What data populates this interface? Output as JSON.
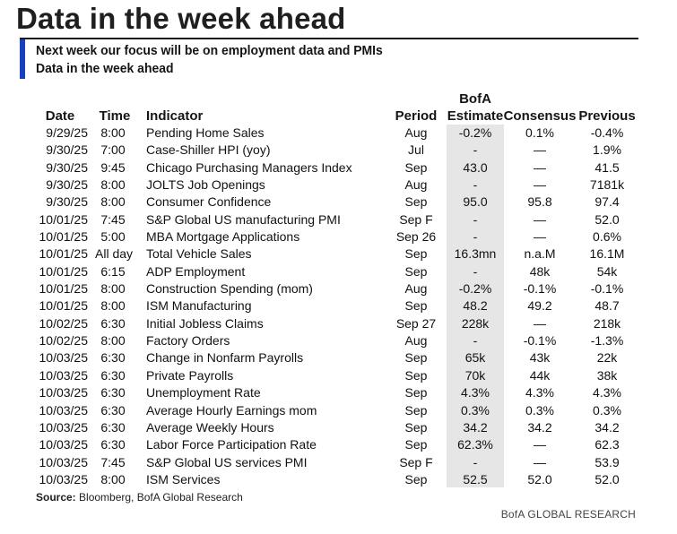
{
  "title": "Data in the week ahead",
  "subtitle1": "Next week our focus will be on employment data and PMIs",
  "subtitle2": "Data in the week ahead",
  "headers": {
    "date": "Date",
    "time": "Time",
    "indicator": "Indicator",
    "period": "Period",
    "bofa_line1": "BofA",
    "bofa_line2": "Estimate",
    "consensus": "Consensus",
    "previous": "Previous"
  },
  "colors": {
    "accent_bar": "#1a3fbf",
    "shade": "#e6e6e6"
  },
  "rows": [
    {
      "date": "9/29/25",
      "time": "8:00",
      "indicator": "Pending Home Sales",
      "period": "Aug",
      "bofa": "-0.2%",
      "consensus": "0.1%",
      "previous": "-0.4%"
    },
    {
      "date": "9/30/25",
      "time": "7:00",
      "indicator": "Case-Shiller HPI (yoy)",
      "period": "Jul",
      "bofa": "-",
      "consensus": "—",
      "previous": "1.9%"
    },
    {
      "date": "9/30/25",
      "time": "9:45",
      "indicator": "Chicago Purchasing Managers Index",
      "period": "Sep",
      "bofa": "43.0",
      "consensus": "—",
      "previous": "41.5"
    },
    {
      "date": "9/30/25",
      "time": "8:00",
      "indicator": "JOLTS Job Openings",
      "period": "Aug",
      "bofa": "-",
      "consensus": "—",
      "previous": "7181k"
    },
    {
      "date": "9/30/25",
      "time": "8:00",
      "indicator": "Consumer Confidence",
      "period": "Sep",
      "bofa": "95.0",
      "consensus": "95.8",
      "previous": "97.4"
    },
    {
      "date": "10/01/25",
      "time": "7:45",
      "indicator": "S&P Global US manufacturing PMI",
      "period": "Sep F",
      "bofa": "-",
      "consensus": "—",
      "previous": "52.0"
    },
    {
      "date": "10/01/25",
      "time": "5:00",
      "indicator": "MBA Mortgage Applications",
      "period": "Sep 26",
      "bofa": "-",
      "consensus": "—",
      "previous": "0.6%"
    },
    {
      "date": "10/01/25",
      "time": "All day",
      "indicator": "Total Vehicle Sales",
      "period": "Sep",
      "bofa": "16.3mn",
      "consensus": "n.a.M",
      "previous": "16.1M"
    },
    {
      "date": "10/01/25",
      "time": "6:15",
      "indicator": "ADP Employment",
      "period": "Sep",
      "bofa": "-",
      "consensus": "48k",
      "previous": "54k"
    },
    {
      "date": "10/01/25",
      "time": "8:00",
      "indicator": "Construction Spending (mom)",
      "period": "Aug",
      "bofa": "-0.2%",
      "consensus": "-0.1%",
      "previous": "-0.1%"
    },
    {
      "date": "10/01/25",
      "time": "8:00",
      "indicator": "ISM Manufacturing",
      "period": "Sep",
      "bofa": "48.2",
      "consensus": "49.2",
      "previous": "48.7"
    },
    {
      "date": "10/02/25",
      "time": "6:30",
      "indicator": "Initial Jobless Claims",
      "period": "Sep 27",
      "bofa": "228k",
      "consensus": "—",
      "previous": "218k"
    },
    {
      "date": "10/02/25",
      "time": "8:00",
      "indicator": "Factory Orders",
      "period": "Aug",
      "bofa": "-",
      "consensus": "-0.1%",
      "previous": "-1.3%"
    },
    {
      "date": "10/03/25",
      "time": "6:30",
      "indicator": "Change in Nonfarm Payrolls",
      "period": "Sep",
      "bofa": "65k",
      "consensus": "43k",
      "previous": "22k"
    },
    {
      "date": "10/03/25",
      "time": "6:30",
      "indicator": "Private Payrolls",
      "period": "Sep",
      "bofa": "70k",
      "consensus": "44k",
      "previous": "38k"
    },
    {
      "date": "10/03/25",
      "time": "6:30",
      "indicator": "Unemployment Rate",
      "period": "Sep",
      "bofa": "4.3%",
      "consensus": "4.3%",
      "previous": "4.3%"
    },
    {
      "date": "10/03/25",
      "time": "6:30",
      "indicator": "Average Hourly Earnings mom",
      "period": "Sep",
      "bofa": "0.3%",
      "consensus": "0.3%",
      "previous": "0.3%"
    },
    {
      "date": "10/03/25",
      "time": "6:30",
      "indicator": "Average Weekly Hours",
      "period": "Sep",
      "bofa": "34.2",
      "consensus": "34.2",
      "previous": "34.2"
    },
    {
      "date": "10/03/25",
      "time": "6:30",
      "indicator": "Labor Force Participation Rate",
      "period": "Sep",
      "bofa": "62.3%",
      "consensus": "—",
      "previous": "62.3"
    },
    {
      "date": "10/03/25",
      "time": "7:45",
      "indicator": "S&P Global US services PMI",
      "period": "Sep F",
      "bofa": "-",
      "consensus": "—",
      "previous": "53.9"
    },
    {
      "date": "10/03/25",
      "time": "8:00",
      "indicator": "ISM Services",
      "period": "Sep",
      "bofa": "52.5",
      "consensus": "52.0",
      "previous": "52.0"
    }
  ],
  "source_label": "Source:",
  "source_text": " Bloomberg, BofA Global Research",
  "footer": "BofA GLOBAL RESEARCH"
}
